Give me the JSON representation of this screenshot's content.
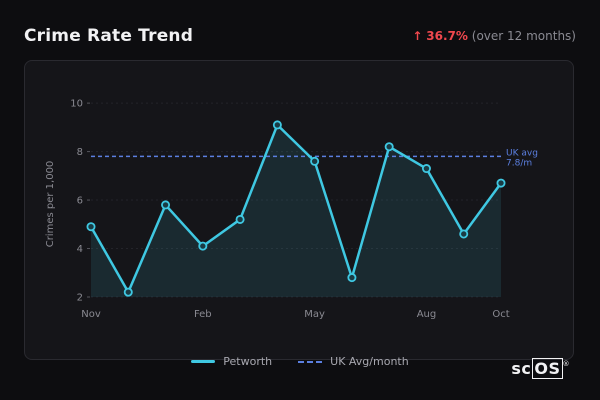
{
  "header": {
    "title": "Crime Rate Trend",
    "change_arrow": "↑",
    "change_pct": "36.7%",
    "change_note": "(over 12 months)"
  },
  "colors": {
    "series": "#3fc8e2",
    "average": "#5b7fe0",
    "increase": "#f0484e"
  },
  "chart_data": {
    "type": "line",
    "ylabel": "Crimes per 1,000",
    "ylim": [
      2,
      10.5
    ],
    "yticks": [
      2,
      4,
      6,
      8,
      10
    ],
    "x_tick_labels": [
      {
        "index": 0,
        "label": "Nov"
      },
      {
        "index": 3,
        "label": "Feb"
      },
      {
        "index": 6,
        "label": "May"
      },
      {
        "index": 9,
        "label": "Aug"
      },
      {
        "index": 11,
        "label": "Oct"
      }
    ],
    "series": [
      {
        "name": "Petworth",
        "values": [
          4.9,
          2.2,
          5.8,
          4.1,
          5.2,
          9.1,
          7.6,
          2.8,
          8.2,
          7.3,
          4.6,
          6.7
        ]
      }
    ],
    "reference": {
      "name": "UK Avg/month",
      "value": 7.8,
      "label_line1": "UK avg",
      "label_line2": "7.8/m"
    },
    "grid": true,
    "legend_position": "bottom"
  },
  "branding": {
    "logo_prefix": "sc",
    "logo_boxed": "OS",
    "logo_mark": "®"
  }
}
